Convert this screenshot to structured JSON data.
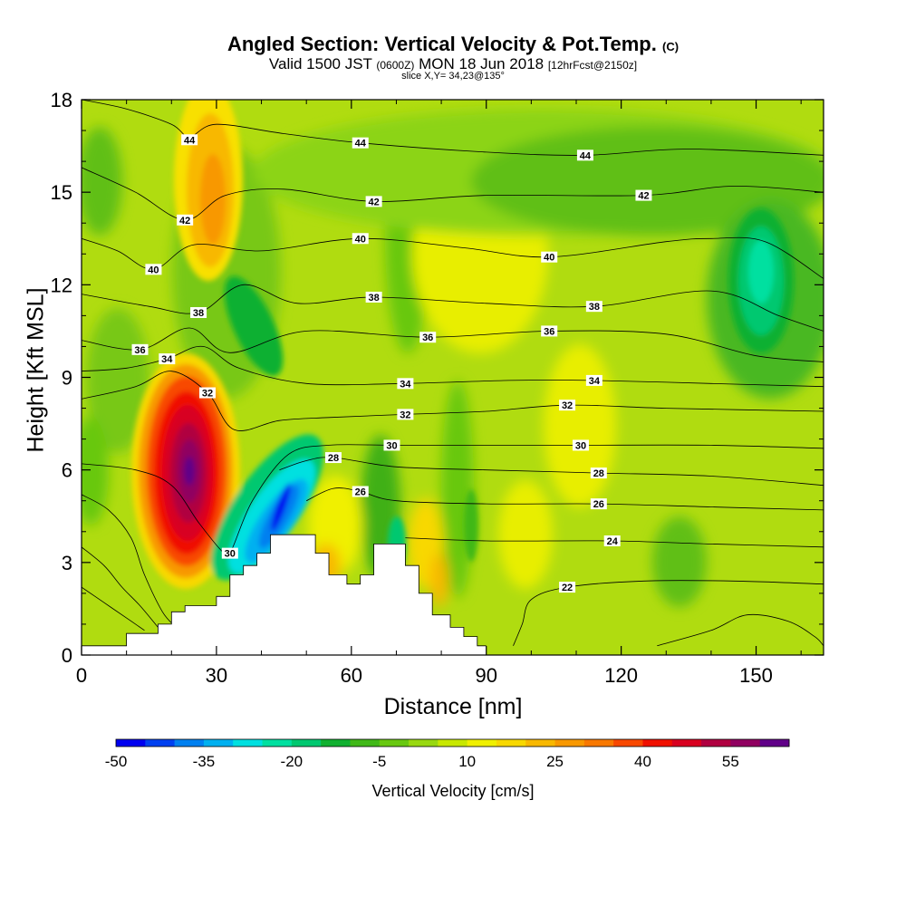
{
  "header": {
    "title": "Angled Section: Vertical Velocity & Pot.Temp.",
    "title_suffix": "(C)",
    "valid_prefix": "Valid 1500 JST",
    "valid_utc": "(0600Z)",
    "valid_date": "MON 18 Jun 2018",
    "forecast": "[12hrFcst@2150z]",
    "slice": "slice X,Y= 34,23@135°"
  },
  "chart_data": {
    "type": "heatmap",
    "title": "Angled Section: Vertical Velocity & Pot.Temp.",
    "xlabel": "Distance [nm]",
    "ylabel": "Height [Kft MSL]",
    "xlim": [
      0,
      165
    ],
    "ylim": [
      0,
      18
    ],
    "x_ticks": [
      0,
      30,
      60,
      90,
      120,
      150
    ],
    "y_ticks": [
      0,
      3,
      6,
      9,
      12,
      15,
      18
    ],
    "colorbar": {
      "label": "Vertical Velocity [cm/s]",
      "tick_labels": [
        -50,
        -35,
        -20,
        -5,
        10,
        25,
        40,
        55
      ],
      "bins": [
        -50,
        -45,
        -40,
        -35,
        -30,
        -25,
        -20,
        -15,
        -10,
        -5,
        0,
        5,
        10,
        15,
        20,
        25,
        30,
        35,
        40,
        45,
        50,
        55,
        60
      ],
      "colors": [
        "#0000f0",
        "#0040f0",
        "#0080f0",
        "#00b0f0",
        "#00e0e0",
        "#00e0a0",
        "#00c870",
        "#10b030",
        "#40b818",
        "#68c810",
        "#98d810",
        "#c8e800",
        "#f0f000",
        "#f8d800",
        "#f8b800",
        "#f89800",
        "#f87800",
        "#f84800",
        "#f01000",
        "#d80020",
        "#b00040",
        "#900060",
        "#600088"
      ]
    },
    "terrain_profile": [
      [
        0,
        0.3
      ],
      [
        10,
        0.3
      ],
      [
        10,
        0.7
      ],
      [
        17,
        0.7
      ],
      [
        17,
        1.0
      ],
      [
        20,
        1.0
      ],
      [
        20,
        1.4
      ],
      [
        23,
        1.4
      ],
      [
        23,
        1.6
      ],
      [
        30,
        1.6
      ],
      [
        30,
        1.9
      ],
      [
        33,
        1.9
      ],
      [
        33,
        2.6
      ],
      [
        36,
        2.6
      ],
      [
        36,
        2.9
      ],
      [
        39,
        2.9
      ],
      [
        39,
        3.3
      ],
      [
        42,
        3.3
      ],
      [
        42,
        3.9
      ],
      [
        52,
        3.9
      ],
      [
        52,
        3.3
      ],
      [
        55,
        3.3
      ],
      [
        55,
        2.6
      ],
      [
        59,
        2.6
      ],
      [
        59,
        2.3
      ],
      [
        62,
        2.3
      ],
      [
        62,
        2.6
      ],
      [
        65,
        2.6
      ],
      [
        65,
        3.6
      ],
      [
        72,
        3.6
      ],
      [
        72,
        2.9
      ],
      [
        75,
        2.9
      ],
      [
        75,
        2.0
      ],
      [
        78,
        2.0
      ],
      [
        78,
        1.3
      ],
      [
        82,
        1.3
      ],
      [
        82,
        0.9
      ],
      [
        85,
        0.9
      ],
      [
        85,
        0.6
      ],
      [
        88,
        0.6
      ],
      [
        88,
        0.3
      ],
      [
        90,
        0.3
      ]
    ],
    "vertical_velocity_cells": [
      {
        "x": 25,
        "y": 6,
        "peak": 60,
        "description_free": true
      },
      {
        "x": 44,
        "y": 4,
        "peak": -50,
        "description_free": true
      },
      {
        "x": 26,
        "y": 15,
        "peak": 25,
        "description_free": true
      },
      {
        "x": 152,
        "y": 12.5,
        "peak": -25,
        "description_free": true
      }
    ],
    "contour_labels": [
      {
        "value": "44",
        "x": 24,
        "y": 16.7
      },
      {
        "value": "44",
        "x": 62,
        "y": 16.6
      },
      {
        "value": "44",
        "x": 112,
        "y": 16.2
      },
      {
        "value": "42",
        "x": 23,
        "y": 14.1
      },
      {
        "value": "42",
        "x": 65,
        "y": 14.7
      },
      {
        "value": "42",
        "x": 125,
        "y": 14.9
      },
      {
        "value": "40",
        "x": 16,
        "y": 12.5
      },
      {
        "value": "40",
        "x": 62,
        "y": 13.5
      },
      {
        "value": "40",
        "x": 104,
        "y": 12.9
      },
      {
        "value": "38",
        "x": 26,
        "y": 11.1
      },
      {
        "value": "38",
        "x": 65,
        "y": 11.6
      },
      {
        "value": "38",
        "x": 114,
        "y": 11.3
      },
      {
        "value": "36",
        "x": 13,
        "y": 9.9
      },
      {
        "value": "36",
        "x": 77,
        "y": 10.3
      },
      {
        "value": "36",
        "x": 104,
        "y": 10.5
      },
      {
        "value": "34",
        "x": 19,
        "y": 9.6
      },
      {
        "value": "34",
        "x": 72,
        "y": 8.8
      },
      {
        "value": "34",
        "x": 114,
        "y": 8.9
      },
      {
        "value": "32",
        "x": 28,
        "y": 8.5
      },
      {
        "value": "32",
        "x": 72,
        "y": 7.8
      },
      {
        "value": "32",
        "x": 108,
        "y": 8.1
      },
      {
        "value": "30",
        "x": 69,
        "y": 6.8
      },
      {
        "value": "30",
        "x": 111,
        "y": 6.8
      },
      {
        "value": "30",
        "x": 33,
        "y": 3.3
      },
      {
        "value": "28",
        "x": 56,
        "y": 6.4
      },
      {
        "value": "28",
        "x": 115,
        "y": 5.9
      },
      {
        "value": "26",
        "x": 62,
        "y": 5.3
      },
      {
        "value": "26",
        "x": 115,
        "y": 4.9
      },
      {
        "value": "24",
        "x": 118,
        "y": 3.7
      },
      {
        "value": "22",
        "x": 108,
        "y": 2.2
      }
    ],
    "theta_contours": [
      {
        "value": 44,
        "points": [
          [
            0,
            18.0
          ],
          [
            10,
            17.7
          ],
          [
            20,
            17.2
          ],
          [
            24,
            16.8
          ],
          [
            30,
            17.2
          ],
          [
            45,
            16.9
          ],
          [
            62,
            16.6
          ],
          [
            90,
            16.3
          ],
          [
            112,
            16.2
          ],
          [
            135,
            16.4
          ],
          [
            165,
            16.2
          ]
        ]
      },
      {
        "value": 42,
        "points": [
          [
            0,
            15.8
          ],
          [
            12,
            15.0
          ],
          [
            23,
            14.1
          ],
          [
            32,
            14.9
          ],
          [
            45,
            15.1
          ],
          [
            65,
            14.7
          ],
          [
            90,
            14.9
          ],
          [
            125,
            14.9
          ],
          [
            145,
            15.2
          ],
          [
            165,
            15.0
          ]
        ]
      },
      {
        "value": 40,
        "points": [
          [
            0,
            13.5
          ],
          [
            8,
            13.1
          ],
          [
            16,
            12.5
          ],
          [
            25,
            13.3
          ],
          [
            40,
            13.1
          ],
          [
            62,
            13.5
          ],
          [
            85,
            13.2
          ],
          [
            104,
            12.9
          ],
          [
            130,
            13.4
          ],
          [
            140,
            13.5
          ],
          [
            152,
            13.4
          ],
          [
            165,
            12.2
          ]
        ]
      },
      {
        "value": 38,
        "points": [
          [
            0,
            11.7
          ],
          [
            15,
            11.3
          ],
          [
            26,
            11.1
          ],
          [
            36,
            12.0
          ],
          [
            48,
            11.4
          ],
          [
            65,
            11.6
          ],
          [
            90,
            11.4
          ],
          [
            114,
            11.3
          ],
          [
            140,
            11.8
          ],
          [
            155,
            11.0
          ],
          [
            165,
            10.5
          ]
        ]
      },
      {
        "value": 36,
        "points": [
          [
            0,
            10.2
          ],
          [
            13,
            9.9
          ],
          [
            24,
            10.6
          ],
          [
            33,
            9.8
          ],
          [
            50,
            10.5
          ],
          [
            77,
            10.3
          ],
          [
            104,
            10.5
          ],
          [
            130,
            10.4
          ],
          [
            150,
            9.7
          ],
          [
            165,
            9.5
          ]
        ]
      },
      {
        "value": 34,
        "points": [
          [
            0,
            9.2
          ],
          [
            10,
            9.3
          ],
          [
            19,
            9.6
          ],
          [
            27,
            10.0
          ],
          [
            35,
            9.3
          ],
          [
            50,
            8.8
          ],
          [
            72,
            8.8
          ],
          [
            95,
            8.9
          ],
          [
            114,
            8.9
          ],
          [
            140,
            8.8
          ],
          [
            165,
            8.7
          ]
        ]
      },
      {
        "value": 32,
        "points": [
          [
            0,
            8.3
          ],
          [
            12,
            8.7
          ],
          [
            20,
            9.2
          ],
          [
            28,
            8.5
          ],
          [
            34,
            7.3
          ],
          [
            44,
            7.6
          ],
          [
            55,
            7.7
          ],
          [
            72,
            7.8
          ],
          [
            90,
            7.9
          ],
          [
            108,
            8.1
          ],
          [
            130,
            8.0
          ],
          [
            165,
            7.9
          ]
        ]
      },
      {
        "value": 30,
        "points": [
          [
            0,
            6.2
          ],
          [
            12,
            6.0
          ],
          [
            20,
            5.5
          ],
          [
            26,
            4.3
          ],
          [
            31,
            3.4
          ],
          [
            33,
            3.3
          ],
          [
            38,
            5.0
          ],
          [
            46,
            6.5
          ],
          [
            55,
            6.8
          ],
          [
            69,
            6.8
          ],
          [
            90,
            6.8
          ],
          [
            111,
            6.8
          ],
          [
            140,
            6.8
          ],
          [
            165,
            6.7
          ]
        ]
      },
      {
        "value": 28,
        "points": [
          [
            0,
            5.2
          ],
          [
            6,
            4.7
          ],
          [
            11,
            3.8
          ],
          [
            14,
            2.6
          ],
          [
            18,
            1.4
          ],
          [
            21,
            0.9
          ]
        ]
      },
      {
        "value": 28,
        "points": [
          [
            44,
            6.0
          ],
          [
            50,
            6.3
          ],
          [
            56,
            6.4
          ],
          [
            70,
            6.1
          ],
          [
            90,
            6.0
          ],
          [
            115,
            5.9
          ],
          [
            140,
            5.8
          ],
          [
            165,
            5.5
          ]
        ]
      },
      {
        "value": 26,
        "points": [
          [
            0,
            3.5
          ],
          [
            5,
            2.9
          ],
          [
            9,
            2.2
          ],
          [
            13,
            1.6
          ],
          [
            17,
            0.9
          ]
        ]
      },
      {
        "value": 26,
        "points": [
          [
            50,
            5.0
          ],
          [
            56,
            5.4
          ],
          [
            62,
            5.3
          ],
          [
            70,
            5.0
          ],
          [
            90,
            4.9
          ],
          [
            115,
            4.9
          ],
          [
            140,
            4.8
          ],
          [
            165,
            4.7
          ]
        ]
      },
      {
        "value": 24,
        "points": [
          [
            0,
            2.2
          ],
          [
            5,
            1.7
          ],
          [
            10,
            1.2
          ],
          [
            14,
            0.8
          ]
        ]
      },
      {
        "value": 24,
        "points": [
          [
            72,
            3.8
          ],
          [
            90,
            3.7
          ],
          [
            118,
            3.7
          ],
          [
            140,
            3.6
          ],
          [
            165,
            3.5
          ]
        ]
      },
      {
        "value": 22,
        "points": [
          [
            96,
            0.3
          ],
          [
            98,
            1.0
          ],
          [
            100,
            1.8
          ],
          [
            108,
            2.2
          ],
          [
            125,
            2.4
          ],
          [
            145,
            2.4
          ],
          [
            165,
            2.3
          ]
        ]
      },
      {
        "value": 22,
        "points": [
          [
            128,
            0.3
          ],
          [
            140,
            0.8
          ],
          [
            148,
            1.3
          ],
          [
            157,
            1.1
          ],
          [
            163,
            0.6
          ],
          [
            165,
            0.3
          ]
        ]
      }
    ]
  }
}
